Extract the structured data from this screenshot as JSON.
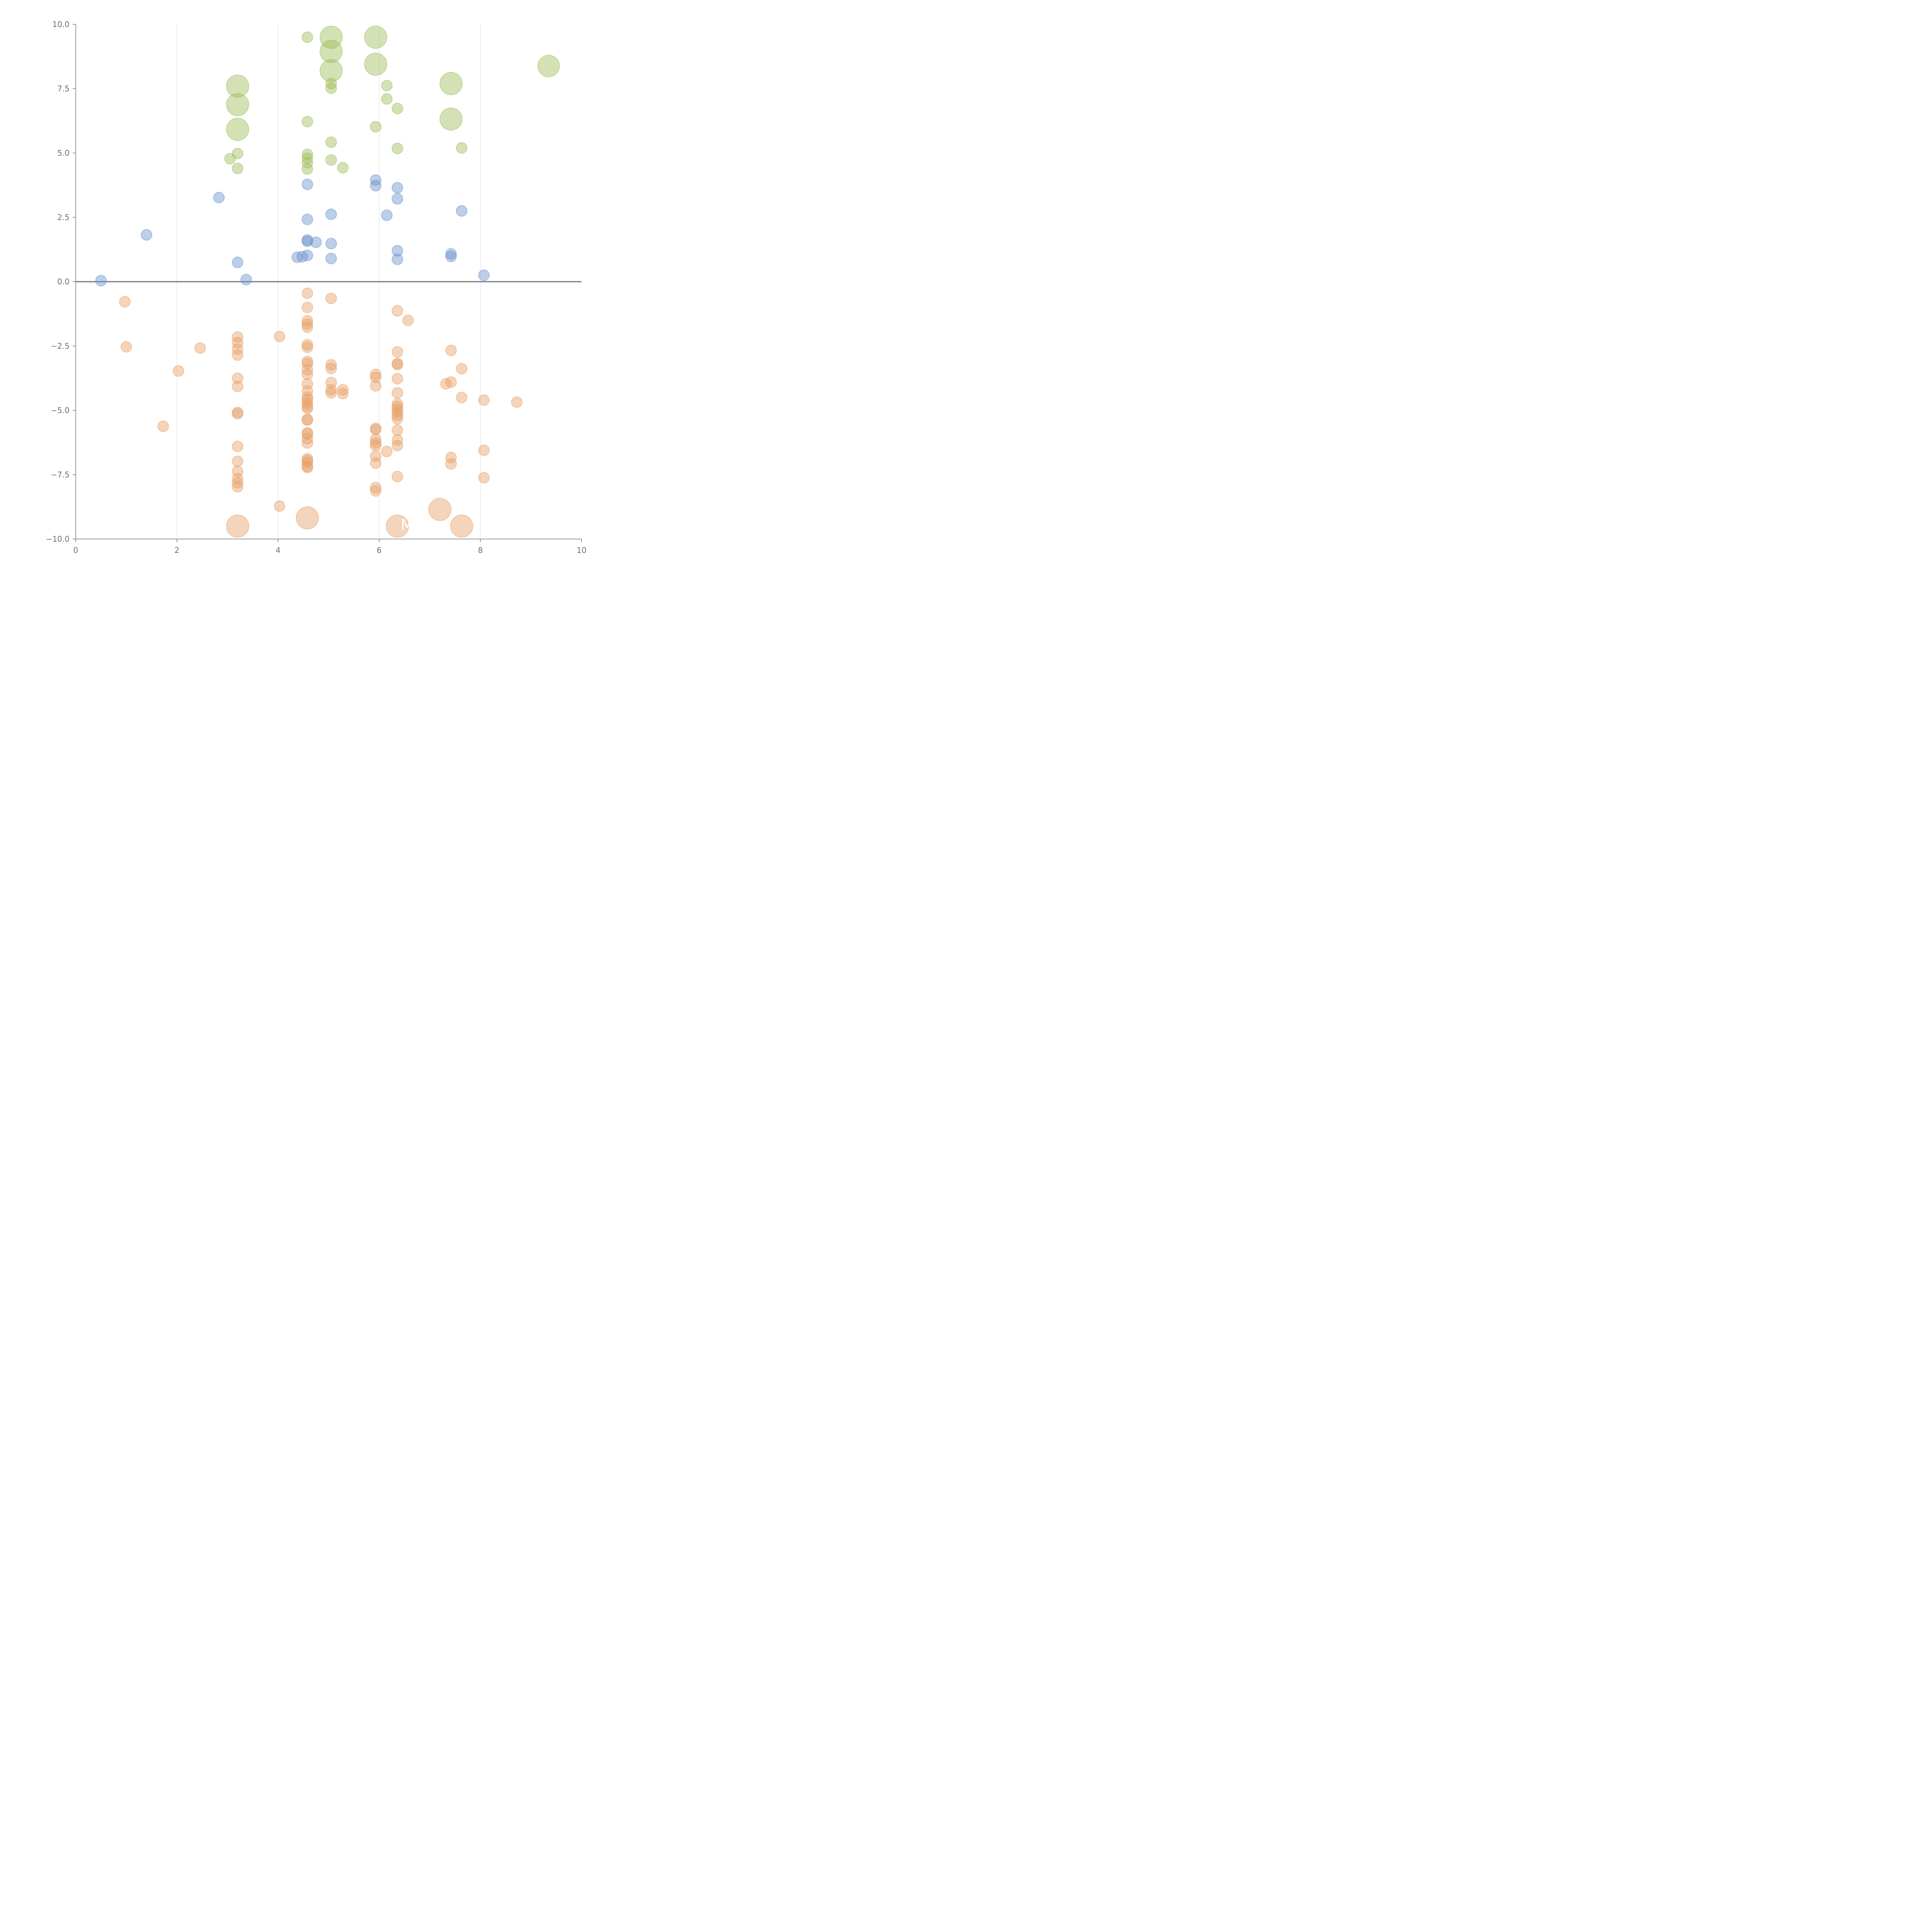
{
  "chart_data": {
    "type": "scatter",
    "title": "",
    "xlabel": "",
    "ylabel": "",
    "xlim": [
      0,
      10
    ],
    "ylim": [
      -10,
      10
    ],
    "x_ticks": [
      "0",
      "2",
      "4",
      "6",
      "8",
      "10"
    ],
    "y_ticks": [
      "10.0",
      "7.5",
      "5.0",
      "2.5",
      "0.0",
      "−2.5",
      "−5.0",
      "−7.5",
      "−10.0"
    ],
    "grid_x": [
      2,
      4,
      6,
      8
    ],
    "reference_line_y": 0,
    "legend": "none",
    "annotations": [
      {
        "text": "M",
        "x": 6.55,
        "y": -9.65
      }
    ],
    "series": [
      {
        "color": "#9dbd5c",
        "points": [
          {
            "x": 4.58,
            "y": 9.5,
            "s": 1
          },
          {
            "x": 5.05,
            "y": 9.5,
            "s": 3
          },
          {
            "x": 5.93,
            "y": 9.5,
            "s": 3
          },
          {
            "x": 5.05,
            "y": 8.95,
            "s": 3
          },
          {
            "x": 5.93,
            "y": 8.45,
            "s": 3
          },
          {
            "x": 9.35,
            "y": 8.38,
            "s": 2
          },
          {
            "x": 5.05,
            "y": 8.2,
            "s": 3
          },
          {
            "x": 3.2,
            "y": 7.6,
            "s": 3
          },
          {
            "x": 7.42,
            "y": 7.7,
            "s": 3
          },
          {
            "x": 5.05,
            "y": 7.7,
            "s": 1
          },
          {
            "x": 6.15,
            "y": 7.62,
            "s": 1
          },
          {
            "x": 5.05,
            "y": 7.52,
            "s": 1
          },
          {
            "x": 6.15,
            "y": 7.1,
            "s": 1
          },
          {
            "x": 3.2,
            "y": 6.88,
            "s": 3
          },
          {
            "x": 6.36,
            "y": 6.73,
            "s": 1
          },
          {
            "x": 7.42,
            "y": 6.32,
            "s": 3
          },
          {
            "x": 4.58,
            "y": 6.22,
            "s": 1
          },
          {
            "x": 5.93,
            "y": 6.02,
            "s": 1
          },
          {
            "x": 3.2,
            "y": 5.92,
            "s": 3
          },
          {
            "x": 5.05,
            "y": 5.42,
            "s": 1
          },
          {
            "x": 6.36,
            "y": 5.18,
            "s": 1
          },
          {
            "x": 7.63,
            "y": 5.2,
            "s": 1
          },
          {
            "x": 3.2,
            "y": 4.98,
            "s": 1
          },
          {
            "x": 4.58,
            "y": 4.95,
            "s": 1
          },
          {
            "x": 4.58,
            "y": 4.8,
            "s": 1
          },
          {
            "x": 3.05,
            "y": 4.78,
            "s": 1
          },
          {
            "x": 5.05,
            "y": 4.73,
            "s": 1
          },
          {
            "x": 4.58,
            "y": 4.62,
            "s": 1
          },
          {
            "x": 5.28,
            "y": 4.43,
            "s": 1
          },
          {
            "x": 3.2,
            "y": 4.4,
            "s": 1
          },
          {
            "x": 4.58,
            "y": 4.38,
            "s": 1
          }
        ]
      },
      {
        "color": "#6b92cc",
        "points": [
          {
            "x": 5.93,
            "y": 3.95,
            "s": 1
          },
          {
            "x": 4.58,
            "y": 3.78,
            "s": 1
          },
          {
            "x": 5.93,
            "y": 3.73,
            "s": 1
          },
          {
            "x": 6.36,
            "y": 3.65,
            "s": 1
          },
          {
            "x": 2.83,
            "y": 3.27,
            "s": 1
          },
          {
            "x": 6.36,
            "y": 3.22,
            "s": 1
          },
          {
            "x": 7.63,
            "y": 2.75,
            "s": 1
          },
          {
            "x": 5.05,
            "y": 2.62,
            "s": 1
          },
          {
            "x": 6.15,
            "y": 2.58,
            "s": 1
          },
          {
            "x": 4.58,
            "y": 2.42,
            "s": 1
          },
          {
            "x": 1.4,
            "y": 1.82,
            "s": 1
          },
          {
            "x": 4.58,
            "y": 1.62,
            "s": 1
          },
          {
            "x": 4.58,
            "y": 1.57,
            "s": 1
          },
          {
            "x": 4.75,
            "y": 1.53,
            "s": 1
          },
          {
            "x": 5.05,
            "y": 1.48,
            "s": 1
          },
          {
            "x": 6.36,
            "y": 1.2,
            "s": 1
          },
          {
            "x": 7.42,
            "y": 1.08,
            "s": 1
          },
          {
            "x": 4.58,
            "y": 1.02,
            "s": 1
          },
          {
            "x": 7.42,
            "y": 0.98,
            "s": 1
          },
          {
            "x": 4.48,
            "y": 0.97,
            "s": 1
          },
          {
            "x": 4.38,
            "y": 0.95,
            "s": 1
          },
          {
            "x": 5.05,
            "y": 0.9,
            "s": 1
          },
          {
            "x": 6.36,
            "y": 0.87,
            "s": 1
          },
          {
            "x": 3.2,
            "y": 0.75,
            "s": 1
          },
          {
            "x": 8.07,
            "y": 0.25,
            "s": 1
          },
          {
            "x": 3.37,
            "y": 0.08,
            "s": 1
          },
          {
            "x": 0.5,
            "y": 0.04,
            "s": 1
          }
        ]
      },
      {
        "color": "#e6a066",
        "points": [
          {
            "x": 4.58,
            "y": -0.45,
            "s": 1
          },
          {
            "x": 5.05,
            "y": -0.65,
            "s": 1
          },
          {
            "x": 0.97,
            "y": -0.78,
            "s": 1
          },
          {
            "x": 4.58,
            "y": -1.0,
            "s": 1
          },
          {
            "x": 6.36,
            "y": -1.13,
            "s": 1
          },
          {
            "x": 6.57,
            "y": -1.5,
            "s": 1
          },
          {
            "x": 4.58,
            "y": -1.52,
            "s": 1
          },
          {
            "x": 4.58,
            "y": -1.65,
            "s": 1
          },
          {
            "x": 4.58,
            "y": -1.77,
            "s": 1
          },
          {
            "x": 4.03,
            "y": -2.13,
            "s": 1
          },
          {
            "x": 3.2,
            "y": -2.15,
            "s": 1
          },
          {
            "x": 3.2,
            "y": -2.37,
            "s": 1
          },
          {
            "x": 4.58,
            "y": -2.45,
            "s": 1
          },
          {
            "x": 1.0,
            "y": -2.53,
            "s": 1
          },
          {
            "x": 4.58,
            "y": -2.55,
            "s": 1
          },
          {
            "x": 2.46,
            "y": -2.58,
            "s": 1
          },
          {
            "x": 3.2,
            "y": -2.62,
            "s": 1
          },
          {
            "x": 7.42,
            "y": -2.67,
            "s": 1
          },
          {
            "x": 6.36,
            "y": -2.73,
            "s": 1
          },
          {
            "x": 3.2,
            "y": -2.85,
            "s": 1
          },
          {
            "x": 4.58,
            "y": -3.1,
            "s": 1
          },
          {
            "x": 4.58,
            "y": -3.18,
            "s": 1
          },
          {
            "x": 6.36,
            "y": -3.18,
            "s": 1
          },
          {
            "x": 6.36,
            "y": -3.22,
            "s": 1
          },
          {
            "x": 5.05,
            "y": -3.23,
            "s": 1
          },
          {
            "x": 5.05,
            "y": -3.37,
            "s": 1
          },
          {
            "x": 7.63,
            "y": -3.38,
            "s": 1
          },
          {
            "x": 4.58,
            "y": -3.42,
            "s": 1
          },
          {
            "x": 2.03,
            "y": -3.47,
            "s": 1
          },
          {
            "x": 4.58,
            "y": -3.6,
            "s": 1
          },
          {
            "x": 5.93,
            "y": -3.6,
            "s": 1
          },
          {
            "x": 5.93,
            "y": -3.72,
            "s": 1
          },
          {
            "x": 3.2,
            "y": -3.75,
            "s": 1
          },
          {
            "x": 6.36,
            "y": -3.77,
            "s": 1
          },
          {
            "x": 7.42,
            "y": -3.9,
            "s": 1
          },
          {
            "x": 5.05,
            "y": -3.92,
            "s": 1
          },
          {
            "x": 4.58,
            "y": -3.97,
            "s": 1
          },
          {
            "x": 7.32,
            "y": -3.97,
            "s": 1
          },
          {
            "x": 3.2,
            "y": -4.07,
            "s": 1
          },
          {
            "x": 5.93,
            "y": -4.05,
            "s": 1
          },
          {
            "x": 5.28,
            "y": -4.2,
            "s": 1
          },
          {
            "x": 5.05,
            "y": -4.2,
            "s": 1
          },
          {
            "x": 4.58,
            "y": -4.25,
            "s": 1
          },
          {
            "x": 5.05,
            "y": -4.32,
            "s": 1
          },
          {
            "x": 6.36,
            "y": -4.32,
            "s": 1
          },
          {
            "x": 5.28,
            "y": -4.35,
            "s": 1
          },
          {
            "x": 4.58,
            "y": -4.48,
            "s": 1
          },
          {
            "x": 7.63,
            "y": -4.5,
            "s": 1
          },
          {
            "x": 4.58,
            "y": -4.58,
            "s": 1
          },
          {
            "x": 8.07,
            "y": -4.6,
            "s": 1
          },
          {
            "x": 8.72,
            "y": -4.68,
            "s": 1
          },
          {
            "x": 4.58,
            "y": -4.72,
            "s": 1
          },
          {
            "x": 6.36,
            "y": -4.75,
            "s": 1
          },
          {
            "x": 4.58,
            "y": -4.85,
            "s": 1
          },
          {
            "x": 6.36,
            "y": -4.85,
            "s": 1
          },
          {
            "x": 4.58,
            "y": -4.92,
            "s": 1
          },
          {
            "x": 6.36,
            "y": -4.97,
            "s": 1
          },
          {
            "x": 3.2,
            "y": -5.08,
            "s": 1
          },
          {
            "x": 6.36,
            "y": -5.08,
            "s": 1
          },
          {
            "x": 3.2,
            "y": -5.13,
            "s": 1
          },
          {
            "x": 6.36,
            "y": -5.2,
            "s": 1
          },
          {
            "x": 6.36,
            "y": -5.33,
            "s": 1
          },
          {
            "x": 4.58,
            "y": -5.35,
            "s": 1
          },
          {
            "x": 4.58,
            "y": -5.38,
            "s": 1
          },
          {
            "x": 1.73,
            "y": -5.62,
            "s": 1
          },
          {
            "x": 5.93,
            "y": -5.7,
            "s": 1
          },
          {
            "x": 5.93,
            "y": -5.75,
            "s": 1
          },
          {
            "x": 6.36,
            "y": -5.77,
            "s": 1
          },
          {
            "x": 4.58,
            "y": -5.87,
            "s": 1
          },
          {
            "x": 4.58,
            "y": -5.92,
            "s": 1
          },
          {
            "x": 4.58,
            "y": -6.1,
            "s": 1
          },
          {
            "x": 5.93,
            "y": -6.13,
            "s": 1
          },
          {
            "x": 6.36,
            "y": -6.15,
            "s": 1
          },
          {
            "x": 4.58,
            "y": -6.27,
            "s": 1
          },
          {
            "x": 5.93,
            "y": -6.27,
            "s": 1
          },
          {
            "x": 5.93,
            "y": -6.37,
            "s": 1
          },
          {
            "x": 6.36,
            "y": -6.37,
            "s": 1
          },
          {
            "x": 3.2,
            "y": -6.4,
            "s": 1
          },
          {
            "x": 8.07,
            "y": -6.55,
            "s": 1
          },
          {
            "x": 6.15,
            "y": -6.6,
            "s": 1
          },
          {
            "x": 5.93,
            "y": -6.78,
            "s": 1
          },
          {
            "x": 7.42,
            "y": -6.83,
            "s": 1
          },
          {
            "x": 4.58,
            "y": -6.88,
            "s": 1
          },
          {
            "x": 4.58,
            "y": -6.95,
            "s": 1
          },
          {
            "x": 3.2,
            "y": -6.98,
            "s": 1
          },
          {
            "x": 4.58,
            "y": -7.02,
            "s": 1
          },
          {
            "x": 5.93,
            "y": -7.05,
            "s": 1
          },
          {
            "x": 7.42,
            "y": -7.08,
            "s": 1
          },
          {
            "x": 4.58,
            "y": -7.18,
            "s": 1
          },
          {
            "x": 4.58,
            "y": -7.22,
            "s": 1
          },
          {
            "x": 3.2,
            "y": -7.37,
            "s": 1
          },
          {
            "x": 6.36,
            "y": -7.57,
            "s": 1
          },
          {
            "x": 8.07,
            "y": -7.62,
            "s": 1
          },
          {
            "x": 3.2,
            "y": -7.65,
            "s": 1
          },
          {
            "x": 3.2,
            "y": -7.82,
            "s": 1
          },
          {
            "x": 3.2,
            "y": -7.97,
            "s": 1
          },
          {
            "x": 5.93,
            "y": -8.0,
            "s": 1
          },
          {
            "x": 5.93,
            "y": -8.13,
            "s": 1
          },
          {
            "x": 4.03,
            "y": -8.72,
            "s": 1
          },
          {
            "x": 7.2,
            "y": -8.85,
            "s": 3
          },
          {
            "x": 4.58,
            "y": -9.18,
            "s": 3
          },
          {
            "x": 3.2,
            "y": -9.5,
            "s": 3
          },
          {
            "x": 6.36,
            "y": -9.5,
            "s": 3
          },
          {
            "x": 7.63,
            "y": -9.5,
            "s": 3
          }
        ]
      }
    ]
  }
}
